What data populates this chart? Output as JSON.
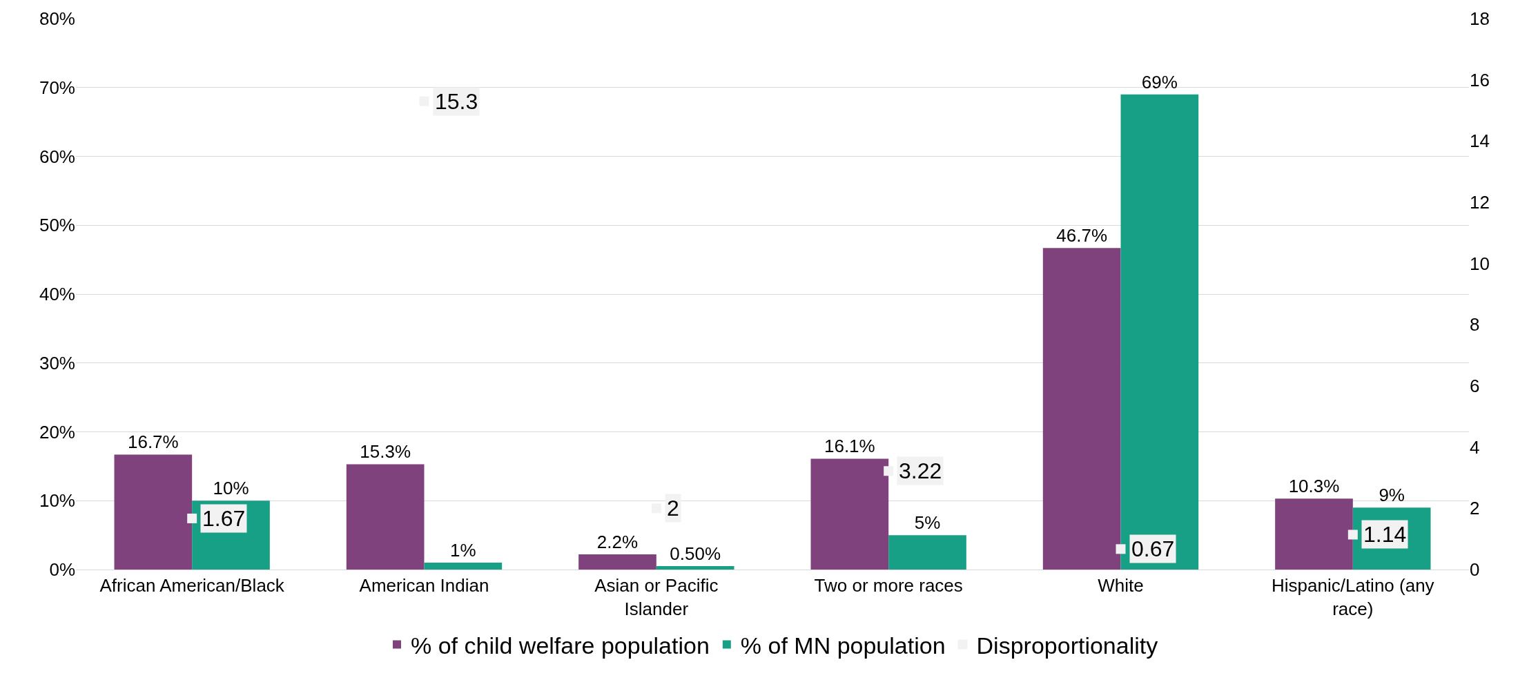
{
  "chart_data": {
    "type": "bar",
    "categories": [
      "African American/Black",
      "American Indian",
      "Asian or Pacific Islander",
      "Two or more races",
      "White",
      "Hispanic/Latino (any race)"
    ],
    "series": [
      {
        "name": "% of child welfare population",
        "color": "#80427c",
        "values": [
          16.7,
          15.3,
          2.2,
          16.1,
          46.7,
          10.3
        ],
        "value_labels": [
          "16.7%",
          "15.3%",
          "2.2%",
          "16.1%",
          "46.7%",
          "10.3%"
        ]
      },
      {
        "name": "% of MN population",
        "color": "#17a086",
        "values": [
          10,
          1,
          0.5,
          5,
          69,
          9
        ],
        "value_labels": [
          "10%",
          "1%",
          "0.50%",
          "5%",
          "69%",
          "9%"
        ]
      },
      {
        "name": "Disproportionality",
        "type": "scatter",
        "axis": "y2",
        "marker": "square",
        "color": "#f2f2f2",
        "values": [
          1.67,
          15.3,
          2,
          3.22,
          0.67,
          1.14
        ],
        "value_labels": [
          "1.67",
          "15.3",
          "2",
          "3.22",
          "0.67",
          "1.14"
        ]
      }
    ],
    "ylim": [
      0,
      80
    ],
    "yticks": [
      {
        "value": 0,
        "label": "0%"
      },
      {
        "value": 10,
        "label": "10%"
      },
      {
        "value": 20,
        "label": "20%"
      },
      {
        "value": 30,
        "label": "30%"
      },
      {
        "value": 40,
        "label": "40%"
      },
      {
        "value": 50,
        "label": "50%"
      },
      {
        "value": 60,
        "label": "60%"
      },
      {
        "value": 70,
        "label": "70%"
      },
      {
        "value": 80,
        "label": "80%"
      }
    ],
    "y2lim": [
      0,
      18
    ],
    "y2ticks": [
      0,
      2,
      4,
      6,
      8,
      10,
      12,
      14,
      16,
      18
    ],
    "grid": "y",
    "legend": "bottom"
  }
}
